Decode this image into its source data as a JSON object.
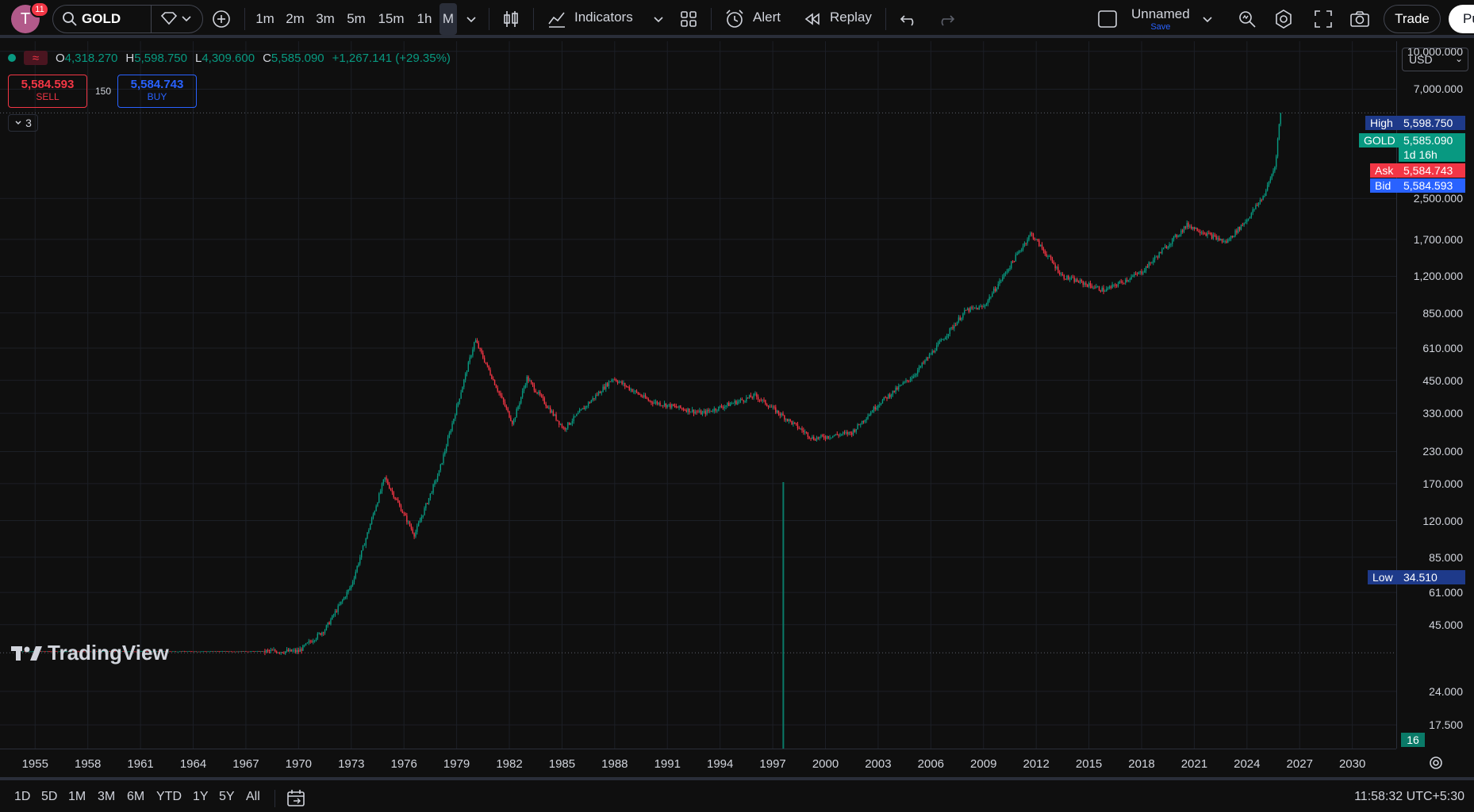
{
  "header": {
    "avatar_letter": "T",
    "notif_count": "11",
    "symbol": "GOLD",
    "timeframes": [
      "1m",
      "2m",
      "3m",
      "5m",
      "15m",
      "1h",
      "M"
    ],
    "active_timeframe": "M",
    "indicators_label": "Indicators",
    "alert_label": "Alert",
    "replay_label": "Replay",
    "layout_name": "Unnamed",
    "save_label": "Save",
    "trade_label": "Trade",
    "publish_label": "Pu"
  },
  "legend": {
    "o_key": "O",
    "o": "4,318.270",
    "h_key": "H",
    "h": "5,598.750",
    "l_key": "L",
    "l": "4,309.600",
    "c_key": "C",
    "c": "5,585.090",
    "change": "+1,267.141 (+29.35%)",
    "sell_price": "5,584.593",
    "sell_label": "SELL",
    "buy_price": "5,584.743",
    "buy_label": "BUY",
    "spread": "150",
    "collapsed_count": "3"
  },
  "price_axis": {
    "currency": "USD",
    "ticks": [
      "10,000.000",
      "7,000.000",
      "2,500.000",
      "1,700.000",
      "1,200.000",
      "850.000",
      "610.000",
      "450.000",
      "330.000",
      "230.000",
      "170.000",
      "120.000",
      "85.000",
      "61.000",
      "45.000",
      "24.000",
      "17.500"
    ]
  },
  "tags": {
    "high_label": "High",
    "high": "5,598.750",
    "gold_label": "GOLD",
    "gold": "5,585.090",
    "countdown": "1d 16h",
    "ask_label": "Ask",
    "ask": "5,584.743",
    "bid_label": "Bid",
    "bid": "5,584.593",
    "low_label": "Low",
    "low": "34.510",
    "volume_badge": "16"
  },
  "time_axis": {
    "years": [
      "1955",
      "1958",
      "1961",
      "1964",
      "1967",
      "1970",
      "1973",
      "1976",
      "1979",
      "1982",
      "1985",
      "1988",
      "1991",
      "1994",
      "1997",
      "2000",
      "2003",
      "2006",
      "2009",
      "2012",
      "2015",
      "2018",
      "2021",
      "2024",
      "2027",
      "2030"
    ]
  },
  "bottom": {
    "ranges": [
      "1D",
      "5D",
      "1M",
      "3M",
      "6M",
      "YTD",
      "1Y",
      "5Y",
      "All"
    ],
    "clock": "11:58:32 UTC+5:30"
  },
  "branding": {
    "logo_text": "TradingView"
  },
  "colors": {
    "up": "#089981",
    "down": "#f23645",
    "background": "#0f0f0f",
    "accent": "#2962ff"
  },
  "chart_data": {
    "type": "candlestick",
    "symbol": "GOLD",
    "interval": "monthly",
    "scale": "log",
    "ylim": [
      14,
      11000
    ],
    "x": [
      1954,
      1968,
      1970,
      1971.5,
      1973,
      1974.9,
      1976.6,
      1978,
      1980.05,
      1982.2,
      1983,
      1985.1,
      1987.9,
      1990,
      1993,
      1996,
      1999.3,
      2001.5,
      2003,
      2005,
      2008,
      2009,
      2011.7,
      2013.5,
      2015.9,
      2018,
      2020.6,
      2022.8,
      2024,
      2025,
      2025.6,
      2025.9
    ],
    "y": [
      35,
      35,
      35,
      43,
      65,
      180,
      105,
      190,
      660,
      300,
      460,
      285,
      460,
      370,
      330,
      390,
      260,
      275,
      360,
      470,
      870,
      900,
      1800,
      1200,
      1050,
      1250,
      1950,
      1650,
      2050,
      2600,
      3400,
      5585
    ]
  }
}
